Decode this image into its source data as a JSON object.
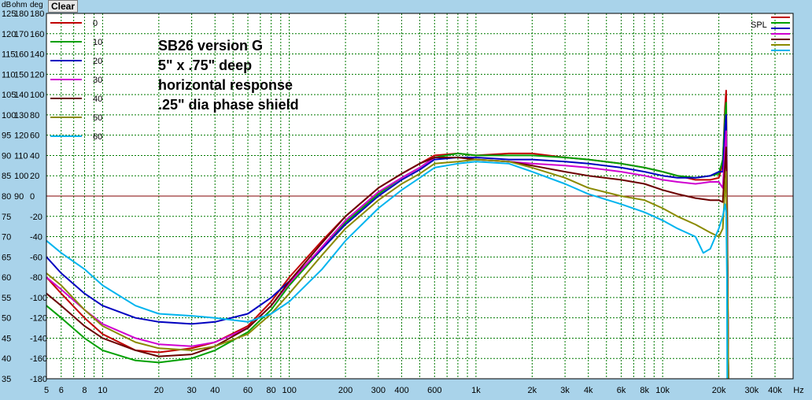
{
  "toolbar": {
    "clear_label": "Clear"
  },
  "axis_headers": {
    "db": "dB",
    "ohm": "ohm",
    "deg": "deg"
  },
  "chart_data": {
    "type": "line",
    "title": "",
    "annotation": [
      "SB26 version G",
      "5\" x .75\" deep",
      "horizontal response",
      ".25\" dia phase shield"
    ],
    "x_scale": "log",
    "xlim": [
      5,
      50000
    ],
    "x_ticks": [
      {
        "v": 5,
        "label": "5"
      },
      {
        "v": 6,
        "label": "6"
      },
      {
        "v": 8,
        "label": "8"
      },
      {
        "v": 10,
        "label": "10"
      },
      {
        "v": 20,
        "label": "20"
      },
      {
        "v": 30,
        "label": "30"
      },
      {
        "v": 40,
        "label": "40"
      },
      {
        "v": 60,
        "label": "60"
      },
      {
        "v": 80,
        "label": "80"
      },
      {
        "v": 100,
        "label": "100"
      },
      {
        "v": 200,
        "label": "200"
      },
      {
        "v": 300,
        "label": "300"
      },
      {
        "v": 400,
        "label": "400"
      },
      {
        "v": 600,
        "label": "600"
      },
      {
        "v": 1000,
        "label": "1k"
      },
      {
        "v": 2000,
        "label": "2k"
      },
      {
        "v": 3000,
        "label": "3k"
      },
      {
        "v": 4000,
        "label": "4k"
      },
      {
        "v": 6000,
        "label": "6k"
      },
      {
        "v": 8000,
        "label": "8k"
      },
      {
        "v": 10000,
        "label": "10k"
      },
      {
        "v": 20000,
        "label": "20k"
      },
      {
        "v": 30000,
        "label": "30k"
      },
      {
        "v": 40000,
        "label": "40k"
      }
    ],
    "x_unit": "Hz",
    "ylim_db": [
      35,
      125
    ],
    "y_ticks": [
      {
        "db": 125,
        "ohm": "180",
        "deg": "180"
      },
      {
        "db": 120,
        "ohm": "170",
        "deg": "160"
      },
      {
        "db": 115,
        "ohm": "160",
        "deg": "140"
      },
      {
        "db": 110,
        "ohm": "150",
        "deg": "120"
      },
      {
        "db": 105,
        "ohm": "140",
        "deg": "100"
      },
      {
        "db": 100,
        "ohm": "130",
        "deg": "80"
      },
      {
        "db": 95,
        "ohm": "120",
        "deg": "60"
      },
      {
        "db": 90,
        "ohm": "110",
        "deg": "40"
      },
      {
        "db": 85,
        "ohm": "100",
        "deg": "20"
      },
      {
        "db": 80,
        "ohm": "90",
        "deg": "0"
      },
      {
        "db": 75,
        "ohm": "",
        "deg": "-20"
      },
      {
        "db": 70,
        "ohm": "",
        "deg": "-40"
      },
      {
        "db": 65,
        "ohm": "",
        "deg": "-60"
      },
      {
        "db": 60,
        "ohm": "",
        "deg": "-80"
      },
      {
        "db": 55,
        "ohm": "",
        "deg": "-100"
      },
      {
        "db": 50,
        "ohm": "",
        "deg": "-120"
      },
      {
        "db": 45,
        "ohm": "",
        "deg": "-140"
      },
      {
        "db": 40,
        "ohm": "",
        "deg": "-160"
      },
      {
        "db": 35,
        "ohm": "",
        "deg": "-180"
      }
    ],
    "reference_line_db": 80,
    "grid": true,
    "spl_legend_label": "SPL",
    "legend_placement": "top-left",
    "series": [
      {
        "name": "0",
        "color": "#c00000",
        "points": [
          [
            5,
            60
          ],
          [
            6,
            56
          ],
          [
            8,
            50
          ],
          [
            10,
            46
          ],
          [
            15,
            42
          ],
          [
            20,
            41.5
          ],
          [
            30,
            42.5
          ],
          [
            40,
            44
          ],
          [
            60,
            48
          ],
          [
            80,
            54
          ],
          [
            100,
            60
          ],
          [
            150,
            69
          ],
          [
            200,
            75
          ],
          [
            300,
            82
          ],
          [
            400,
            85.5
          ],
          [
            500,
            88
          ],
          [
            600,
            90
          ],
          [
            800,
            90.5
          ],
          [
            1000,
            90
          ],
          [
            1500,
            90.5
          ],
          [
            2000,
            90.5
          ],
          [
            3000,
            89.5
          ],
          [
            4000,
            89
          ],
          [
            6000,
            88
          ],
          [
            8000,
            87
          ],
          [
            10000,
            86
          ],
          [
            12000,
            85
          ],
          [
            15000,
            84
          ],
          [
            18000,
            84
          ],
          [
            20000,
            84.5
          ],
          [
            21000,
            88
          ],
          [
            21600,
            102
          ],
          [
            21900,
            106
          ],
          [
            22200,
            75
          ],
          [
            22500,
            35
          ]
        ]
      },
      {
        "name": "10",
        "color": "#00a000",
        "points": [
          [
            5,
            53
          ],
          [
            6,
            50
          ],
          [
            8,
            45
          ],
          [
            10,
            42
          ],
          [
            15,
            39.5
          ],
          [
            20,
            39
          ],
          [
            30,
            40
          ],
          [
            40,
            42
          ],
          [
            60,
            46.5
          ],
          [
            80,
            52
          ],
          [
            100,
            58
          ],
          [
            150,
            67
          ],
          [
            200,
            73.5
          ],
          [
            300,
            80.5
          ],
          [
            400,
            84.5
          ],
          [
            500,
            87
          ],
          [
            600,
            89.5
          ],
          [
            800,
            90.5
          ],
          [
            1000,
            90
          ],
          [
            1500,
            90
          ],
          [
            2000,
            90
          ],
          [
            3000,
            89.5
          ],
          [
            4000,
            89
          ],
          [
            6000,
            88
          ],
          [
            8000,
            87
          ],
          [
            10000,
            86
          ],
          [
            12000,
            85
          ],
          [
            15000,
            84.5
          ],
          [
            18000,
            85
          ],
          [
            20000,
            85.5
          ],
          [
            21000,
            89
          ],
          [
            21600,
            100
          ],
          [
            21900,
            103
          ],
          [
            22200,
            72
          ],
          [
            22500,
            35
          ]
        ]
      },
      {
        "name": "20",
        "color": "#0000c0",
        "points": [
          [
            5,
            65
          ],
          [
            6,
            61
          ],
          [
            8,
            56
          ],
          [
            10,
            53
          ],
          [
            15,
            50
          ],
          [
            20,
            49
          ],
          [
            30,
            48.5
          ],
          [
            40,
            49
          ],
          [
            60,
            51
          ],
          [
            80,
            55
          ],
          [
            100,
            59
          ],
          [
            150,
            67
          ],
          [
            200,
            73
          ],
          [
            300,
            80
          ],
          [
            400,
            84
          ],
          [
            500,
            86.5
          ],
          [
            600,
            89
          ],
          [
            800,
            89.5
          ],
          [
            1000,
            89.5
          ],
          [
            1500,
            89
          ],
          [
            2000,
            89
          ],
          [
            3000,
            88.5
          ],
          [
            4000,
            88
          ],
          [
            6000,
            87
          ],
          [
            8000,
            86
          ],
          [
            10000,
            85
          ],
          [
            12000,
            84.5
          ],
          [
            15000,
            84.5
          ],
          [
            18000,
            85
          ],
          [
            20000,
            86
          ],
          [
            21000,
            86
          ],
          [
            21600,
            97
          ],
          [
            21900,
            100
          ],
          [
            22200,
            70
          ],
          [
            22500,
            35
          ]
        ]
      },
      {
        "name": "30",
        "color": "#d000d0",
        "points": [
          [
            5,
            60
          ],
          [
            6,
            57
          ],
          [
            8,
            52
          ],
          [
            10,
            48.5
          ],
          [
            15,
            45
          ],
          [
            20,
            43.5
          ],
          [
            30,
            43
          ],
          [
            40,
            44
          ],
          [
            60,
            47.5
          ],
          [
            80,
            53
          ],
          [
            100,
            58.5
          ],
          [
            150,
            67.5
          ],
          [
            200,
            74
          ],
          [
            300,
            81
          ],
          [
            400,
            84.5
          ],
          [
            500,
            87
          ],
          [
            600,
            89.5
          ],
          [
            800,
            89.5
          ],
          [
            1000,
            89
          ],
          [
            1500,
            88.5
          ],
          [
            2000,
            88
          ],
          [
            3000,
            87.5
          ],
          [
            4000,
            87
          ],
          [
            6000,
            86
          ],
          [
            8000,
            85
          ],
          [
            10000,
            84
          ],
          [
            12000,
            83.5
          ],
          [
            15000,
            83
          ],
          [
            18000,
            83.5
          ],
          [
            20000,
            83.5
          ],
          [
            21000,
            82
          ],
          [
            21600,
            92
          ],
          [
            21900,
            96
          ],
          [
            22200,
            70
          ],
          [
            22500,
            35
          ]
        ]
      },
      {
        "name": "40",
        "color": "#6b0000",
        "points": [
          [
            5,
            56
          ],
          [
            6,
            53
          ],
          [
            8,
            48
          ],
          [
            10,
            45
          ],
          [
            15,
            42
          ],
          [
            20,
            40.5
          ],
          [
            30,
            41
          ],
          [
            40,
            43
          ],
          [
            60,
            47.5
          ],
          [
            80,
            53
          ],
          [
            100,
            59
          ],
          [
            150,
            68.5
          ],
          [
            200,
            75
          ],
          [
            300,
            82
          ],
          [
            400,
            85.5
          ],
          [
            500,
            88
          ],
          [
            600,
            89.5
          ],
          [
            800,
            89.5
          ],
          [
            1000,
            89
          ],
          [
            1500,
            88.5
          ],
          [
            2000,
            87.5
          ],
          [
            3000,
            86
          ],
          [
            4000,
            85
          ],
          [
            6000,
            84
          ],
          [
            8000,
            83
          ],
          [
            10000,
            81.5
          ],
          [
            12000,
            80.5
          ],
          [
            15000,
            79.5
          ],
          [
            18000,
            79
          ],
          [
            20000,
            79
          ],
          [
            21000,
            78.5
          ],
          [
            21600,
            88
          ],
          [
            21900,
            92
          ],
          [
            22200,
            70
          ],
          [
            22500,
            35
          ]
        ]
      },
      {
        "name": "50",
        "color": "#8a8a00",
        "points": [
          [
            5,
            61
          ],
          [
            6,
            58
          ],
          [
            8,
            52
          ],
          [
            10,
            48
          ],
          [
            15,
            44
          ],
          [
            20,
            42.5
          ],
          [
            30,
            42
          ],
          [
            40,
            43
          ],
          [
            60,
            46
          ],
          [
            80,
            51
          ],
          [
            100,
            56
          ],
          [
            150,
            65.5
          ],
          [
            200,
            72
          ],
          [
            300,
            79
          ],
          [
            400,
            83
          ],
          [
            500,
            85.5
          ],
          [
            600,
            88
          ],
          [
            800,
            88.5
          ],
          [
            1000,
            89
          ],
          [
            1500,
            88.5
          ],
          [
            2000,
            87
          ],
          [
            3000,
            84.5
          ],
          [
            4000,
            82
          ],
          [
            6000,
            80
          ],
          [
            8000,
            79
          ],
          [
            10000,
            77
          ],
          [
            12000,
            75
          ],
          [
            15000,
            73
          ],
          [
            18000,
            71
          ],
          [
            20000,
            70
          ],
          [
            21000,
            72
          ],
          [
            21600,
            82
          ],
          [
            21900,
            86
          ],
          [
            22200,
            65
          ],
          [
            22500,
            35
          ]
        ]
      },
      {
        "name": "60",
        "color": "#00b4ee",
        "points": [
          [
            5,
            69
          ],
          [
            6,
            66
          ],
          [
            8,
            62
          ],
          [
            10,
            58
          ],
          [
            15,
            53
          ],
          [
            20,
            51
          ],
          [
            30,
            50.5
          ],
          [
            40,
            50
          ],
          [
            60,
            49
          ],
          [
            80,
            51
          ],
          [
            100,
            54
          ],
          [
            150,
            62
          ],
          [
            200,
            69
          ],
          [
            300,
            77
          ],
          [
            400,
            81.5
          ],
          [
            500,
            84.5
          ],
          [
            600,
            87
          ],
          [
            800,
            88
          ],
          [
            1000,
            88.5
          ],
          [
            1500,
            88
          ],
          [
            2000,
            86
          ],
          [
            3000,
            83
          ],
          [
            4000,
            80.5
          ],
          [
            6000,
            78
          ],
          [
            8000,
            76
          ],
          [
            10000,
            74
          ],
          [
            12000,
            72
          ],
          [
            15000,
            70
          ],
          [
            16500,
            66
          ],
          [
            18000,
            67
          ],
          [
            20000,
            72
          ],
          [
            21000,
            75
          ],
          [
            21600,
            78
          ],
          [
            21900,
            76
          ],
          [
            22100,
            60
          ],
          [
            22200,
            35
          ]
        ]
      }
    ]
  }
}
